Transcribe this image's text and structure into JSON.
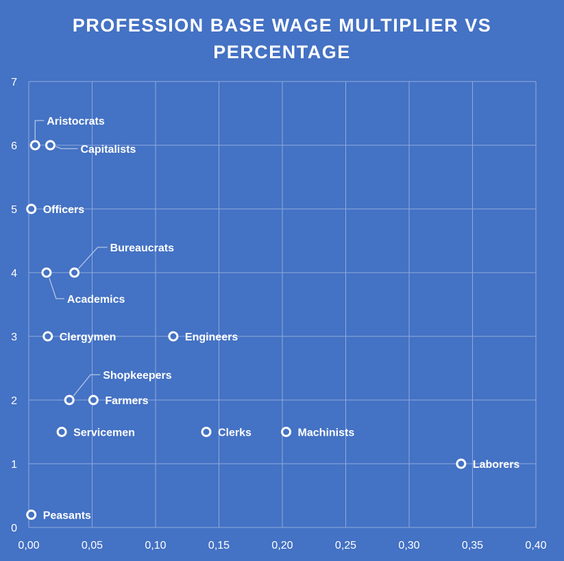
{
  "title_line1": "PROFESSION BASE WAGE MULTIPLIER VS",
  "title_line2": "PERCENTAGE",
  "chart_data": {
    "type": "scatter",
    "title": "PROFESSION BASE WAGE MULTIPLIER VS PERCENTAGE",
    "xlabel": "",
    "ylabel": "",
    "xlim": [
      0,
      0.4
    ],
    "ylim": [
      0,
      7
    ],
    "x_ticks": [
      "0,00",
      "0,05",
      "0,10",
      "0,15",
      "0,20",
      "0,25",
      "0,30",
      "0,35",
      "0,40"
    ],
    "y_ticks": [
      "0",
      "1",
      "2",
      "3",
      "4",
      "5",
      "6",
      "7"
    ],
    "grid": true,
    "legend": "none",
    "marker_color": "#ffffff",
    "background": "#4472c4",
    "points": [
      {
        "label": "Aristocrats",
        "x": 0.005,
        "y": 6
      },
      {
        "label": "Capitalists",
        "x": 0.017,
        "y": 6
      },
      {
        "label": "Officers",
        "x": 0.002,
        "y": 5
      },
      {
        "label": "Bureaucrats",
        "x": 0.036,
        "y": 4
      },
      {
        "label": "Academics",
        "x": 0.014,
        "y": 4
      },
      {
        "label": "Clergymen",
        "x": 0.015,
        "y": 3
      },
      {
        "label": "Engineers",
        "x": 0.114,
        "y": 3
      },
      {
        "label": "Shopkeepers",
        "x": 0.032,
        "y": 2
      },
      {
        "label": "Farmers",
        "x": 0.051,
        "y": 2
      },
      {
        "label": "Servicemen",
        "x": 0.026,
        "y": 1.5
      },
      {
        "label": "Clerks",
        "x": 0.14,
        "y": 1.5
      },
      {
        "label": "Machinists",
        "x": 0.203,
        "y": 1.5
      },
      {
        "label": "Laborers",
        "x": 0.341,
        "y": 1
      },
      {
        "label": "Peasants",
        "x": 0.002,
        "y": 0.2
      }
    ]
  }
}
